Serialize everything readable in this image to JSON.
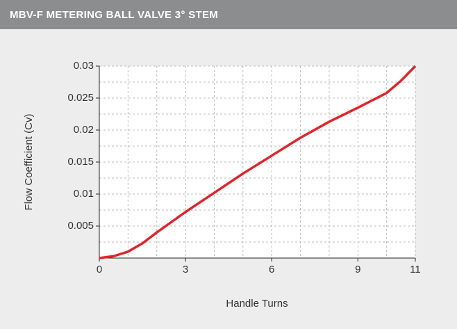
{
  "header": {
    "title": "MBV-F METERING BALL VALVE 3° STEM"
  },
  "chart_data": {
    "type": "line",
    "x_label": "Handle Turns",
    "y_label": "Flow Coefficient (Cv)",
    "x": [
      0,
      0.5,
      1,
      1.5,
      2,
      3,
      4,
      5,
      6,
      7,
      8,
      9,
      10,
      10.5,
      11
    ],
    "series": [
      {
        "name": "Cv",
        "color": "#e0242b",
        "values": [
          0,
          0.0003,
          0.001,
          0.0023,
          0.004,
          0.0072,
          0.0102,
          0.0132,
          0.016,
          0.0188,
          0.0213,
          0.0235,
          0.0258,
          0.0277,
          0.03
        ]
      }
    ],
    "xlim": [
      0,
      11
    ],
    "ylim": [
      0,
      0.03
    ],
    "xticks": [
      0,
      3,
      6,
      9,
      11
    ],
    "yticks": [
      0.005,
      0.01,
      0.015,
      0.02,
      0.025,
      0.03
    ],
    "xgrid": [
      1,
      2,
      3,
      4,
      5,
      6,
      7,
      8,
      9,
      10,
      11
    ],
    "ygrid": [
      0.0025,
      0.005,
      0.0075,
      0.01,
      0.0125,
      0.015,
      0.0175,
      0.02,
      0.0225,
      0.025,
      0.0275,
      0.03
    ],
    "grid": true
  }
}
